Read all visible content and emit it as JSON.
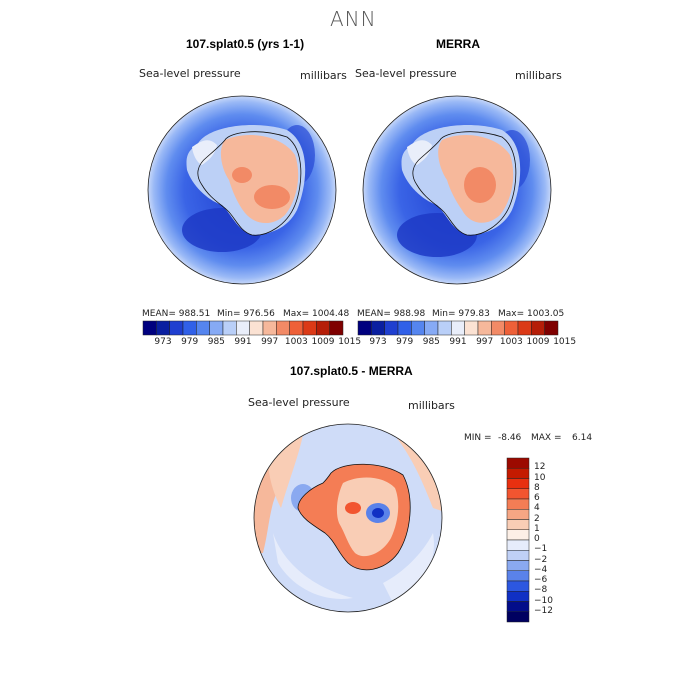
{
  "figure": {
    "title": "ANN",
    "variable_label": "Sea-level pressure",
    "units_label": "millibars"
  },
  "panels": {
    "model": {
      "title": "107.splat0.5 (yrs 1-1)",
      "stats": {
        "mean": "MEAN= 988.51",
        "min": "Min= 976.56",
        "max": "Max= 1004.48"
      }
    },
    "obs": {
      "title": "MERRA",
      "stats": {
        "mean": "MEAN= 988.98",
        "min": "Min= 979.83",
        "max": "Max= 1003.05"
      }
    },
    "diff": {
      "title": "107.splat0.5 - MERRA",
      "min_label": "MIN =",
      "min_value": "-8.46",
      "max_label": "MAX =",
      "max_value": "6.14"
    }
  },
  "colorbar_abs": {
    "ticks": [
      "973",
      "979",
      "985",
      "991",
      "997",
      "1003",
      "1009",
      "1015"
    ],
    "colors": [
      "#00007f",
      "#0a1fa0",
      "#1f3fd0",
      "#3060e8",
      "#5585ef",
      "#86aaf5",
      "#b9cff8",
      "#e9eefa",
      "#fbe2d3",
      "#f6b89b",
      "#f28a66",
      "#ee6038",
      "#db3a17",
      "#b51e08",
      "#7f0000"
    ]
  },
  "colorbar_diff": {
    "ticks": [
      "12",
      "10",
      "8",
      "6",
      "4",
      "2",
      "1",
      "0",
      "−1",
      "−2",
      "−4",
      "−6",
      "−8",
      "−10",
      "−12"
    ],
    "colors": [
      "#9c0a00",
      "#c41a00",
      "#e83010",
      "#f25530",
      "#f47d55",
      "#f6a684",
      "#f9cdb5",
      "#fcefe6",
      "#e6ecfb",
      "#bfd0f6",
      "#8aa9f0",
      "#5a82ea",
      "#2c57e0",
      "#1030c4",
      "#030d8a",
      "#000060"
    ]
  }
}
